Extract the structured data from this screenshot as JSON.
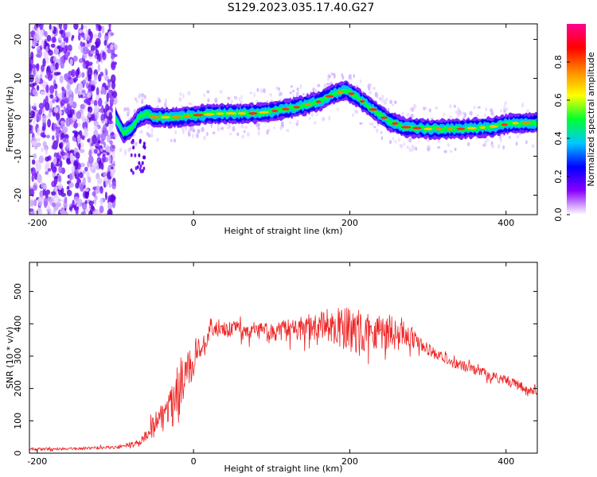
{
  "title": "S129.2023.035.17.40.G27",
  "chart_data": [
    {
      "type": "heatmap",
      "xlabel": "Height of straight line (km)",
      "ylabel": "Frequency (Hz)",
      "xlim": [
        -210,
        440
      ],
      "ylim": [
        -25,
        24
      ],
      "xticks": [
        -200,
        0,
        200,
        400
      ],
      "yticks": [
        -20,
        -10,
        0,
        10,
        20
      ],
      "grid": false,
      "noise_region_x": [
        -210,
        -100
      ],
      "ridge": {
        "x": [
          -100,
          -90,
          -80,
          -70,
          -60,
          -50,
          -40,
          -20,
          0,
          40,
          80,
          100,
          130,
          160,
          180,
          195,
          210,
          230,
          250,
          270,
          300,
          340,
          380,
          410,
          440
        ],
        "y": [
          0,
          -4,
          -3,
          0,
          1,
          0,
          0,
          0,
          0.5,
          1,
          1,
          1.5,
          2.5,
          4,
          6,
          7,
          5,
          2,
          -1,
          -2.5,
          -3,
          -3,
          -2.5,
          -1.5,
          -1.5
        ]
      },
      "colorbar": {
        "label": "Normalized spectral amplitude",
        "range": [
          0,
          1
        ],
        "ticks": [
          0.0,
          0.2,
          0.4,
          0.6,
          0.8
        ],
        "tick_labels": [
          "0.0",
          "0.2",
          "0.4",
          "0.6",
          "0.8"
        ],
        "colors": [
          "#ffffff",
          "#8a00ff",
          "#0000ff",
          "#00c8ff",
          "#00ff30",
          "#ffff00",
          "#ff8800",
          "#ff0000",
          "#ff0090"
        ]
      }
    },
    {
      "type": "line",
      "xlabel": "Height of straight line (km)",
      "ylabel": "SNR (10 * v/v)",
      "xlim": [
        -210,
        440
      ],
      "ylim": [
        0,
        590
      ],
      "xticks": [
        -200,
        0,
        200,
        400
      ],
      "yticks": [
        0,
        100,
        200,
        300,
        400,
        500
      ],
      "grid": false,
      "color": "#ee2222",
      "x": [
        -210,
        -150,
        -100,
        -70,
        -60,
        -50,
        -40,
        -30,
        -20,
        -10,
        0,
        10,
        20,
        30,
        40,
        60,
        80,
        100,
        120,
        140,
        160,
        180,
        200,
        220,
        240,
        260,
        275,
        285,
        300,
        320,
        340,
        360,
        380,
        400,
        420,
        440
      ],
      "y": [
        12,
        14,
        18,
        30,
        55,
        90,
        115,
        150,
        200,
        240,
        290,
        340,
        370,
        378,
        380,
        385,
        375,
        372,
        380,
        385,
        388,
        392,
        380,
        375,
        380,
        375,
        370,
        345,
        320,
        290,
        275,
        258,
        240,
        225,
        205,
        190
      ],
      "spread": [
        4,
        4,
        5,
        10,
        20,
        40,
        50,
        60,
        70,
        65,
        55,
        45,
        30,
        25,
        25,
        25,
        30,
        30,
        35,
        40,
        50,
        60,
        70,
        65,
        60,
        55,
        40,
        25,
        20,
        18,
        16,
        15,
        15,
        15,
        15,
        15
      ]
    }
  ]
}
